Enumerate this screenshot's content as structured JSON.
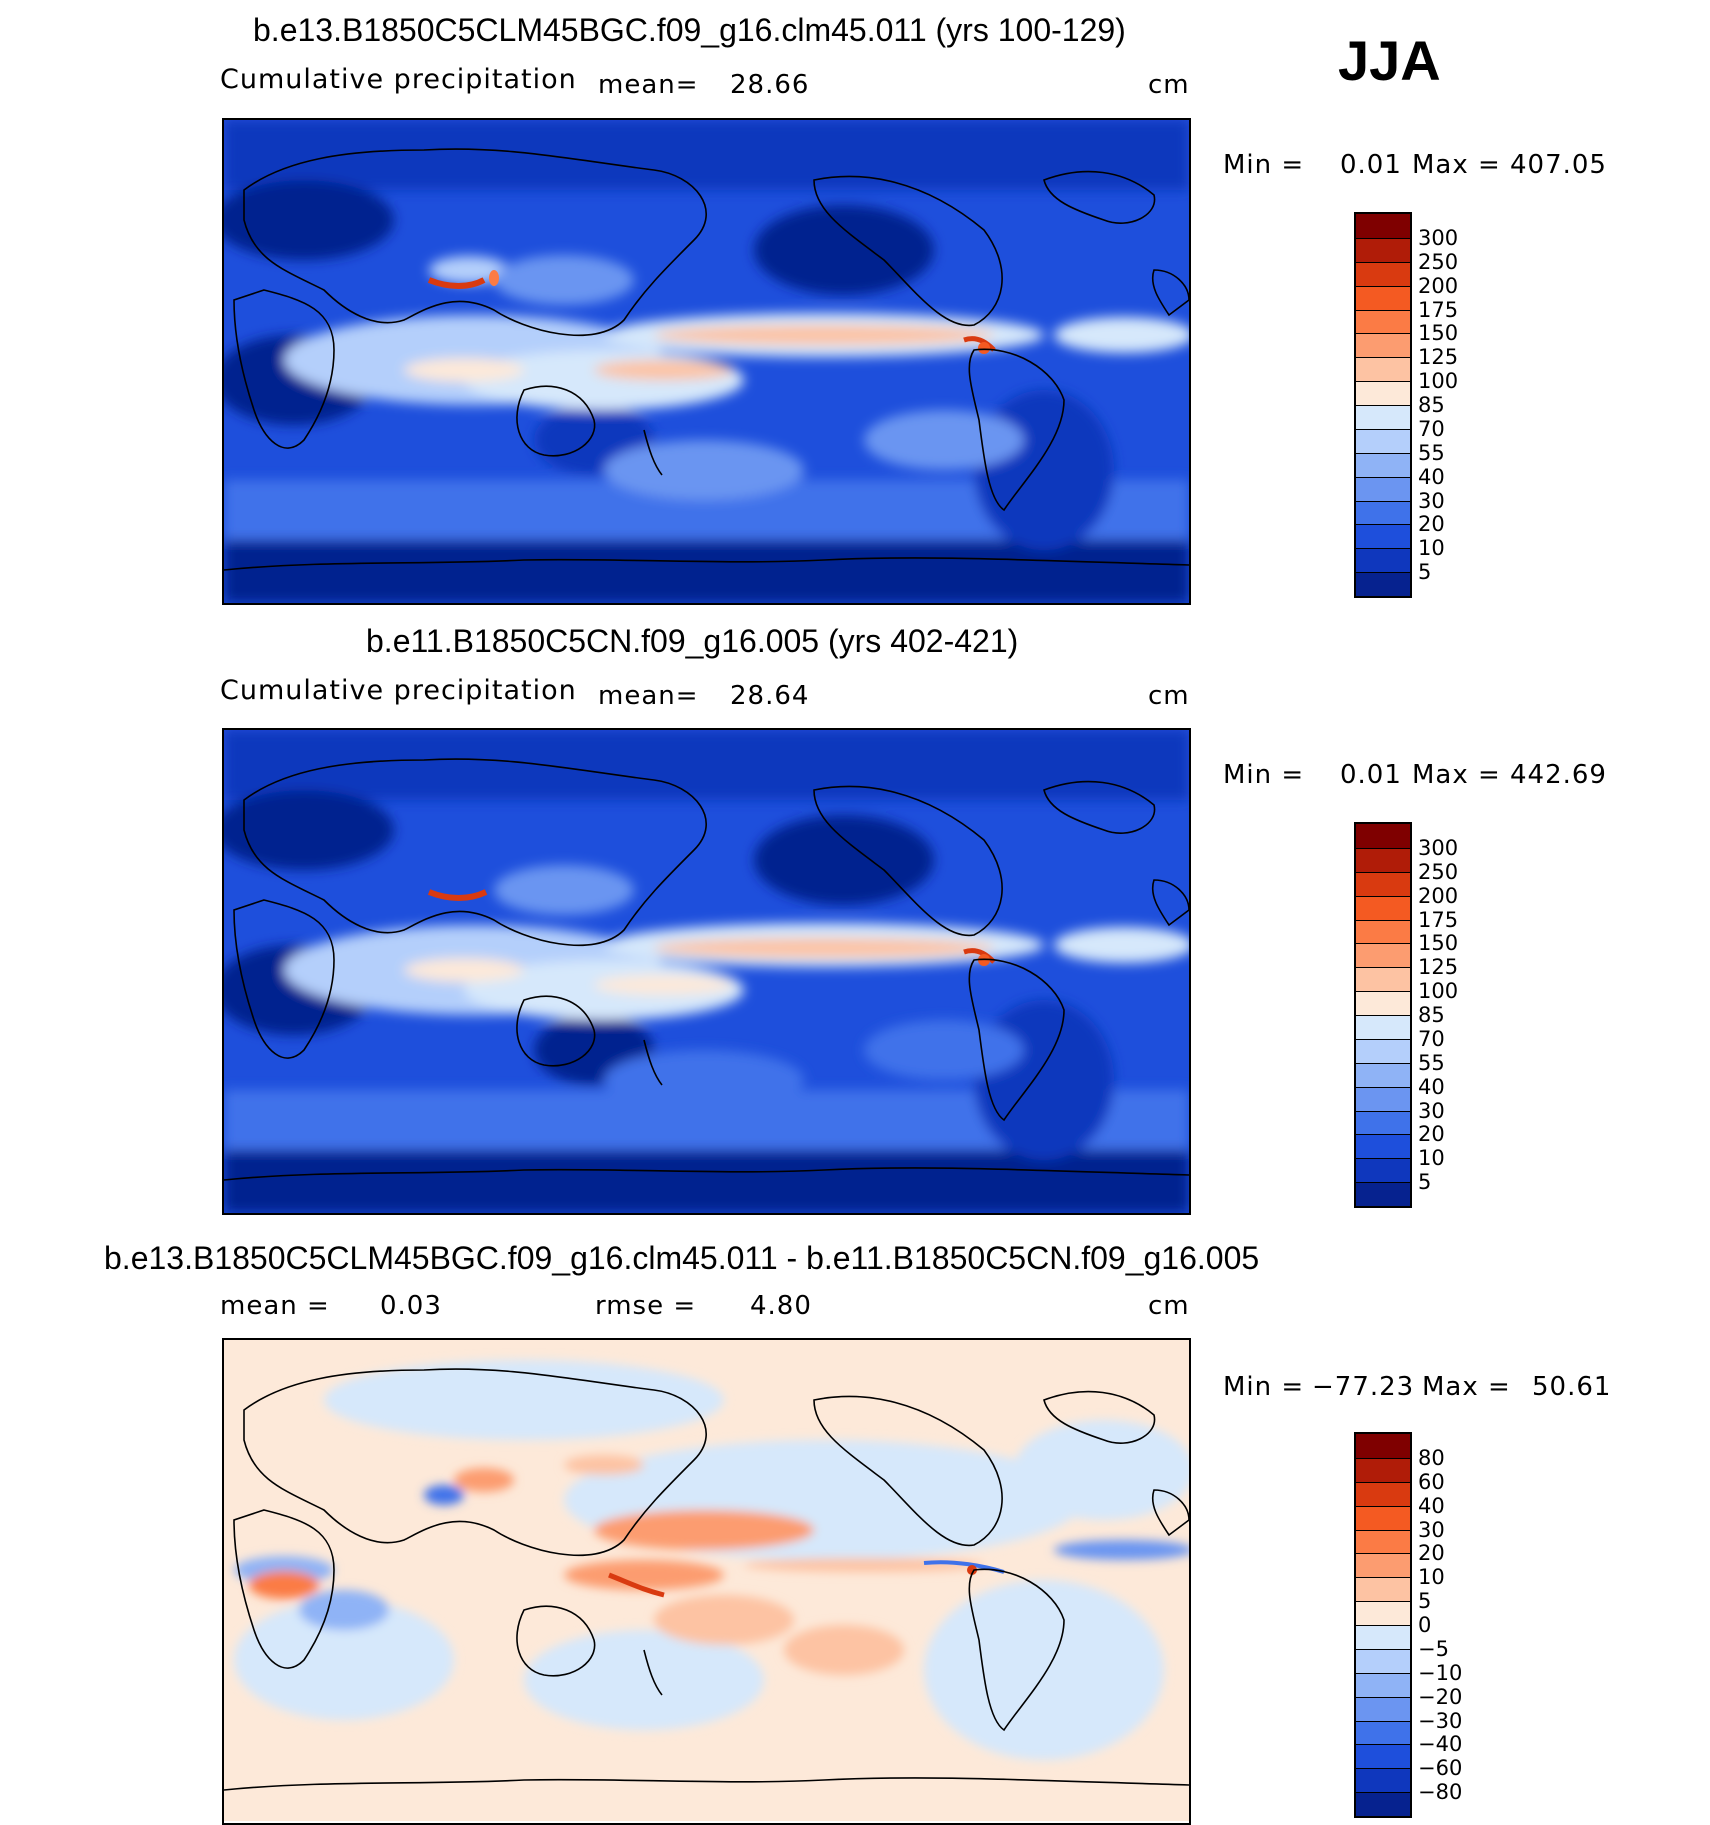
{
  "season": "JJA",
  "panels": [
    {
      "title": "b.e13.B1850C5CLM45BGC.f09_g16.clm45.011 (yrs 100-129)",
      "variable": "Cumulative precipitation",
      "mean_label": "mean=",
      "mean_value": "28.66",
      "units": "cm",
      "min_label": "Min =",
      "min_value": "0.01",
      "max_label": "Max =",
      "max_value": "407.05"
    },
    {
      "title": "b.e11.B1850C5CN.f09_g16.005 (yrs 402-421)",
      "variable": "Cumulative precipitation",
      "mean_label": "mean=",
      "mean_value": "28.64",
      "units": "cm",
      "min_label": "Min =",
      "min_value": "0.01",
      "max_label": "Max =",
      "max_value": "442.69"
    },
    {
      "title": "b.e13.B1850C5CLM45BGC.f09_g16.clm45.011 - b.e11.B1850C5CN.f09_g16.005",
      "mean_label": "mean =",
      "mean_value": "0.03",
      "rmse_label": "rmse =",
      "rmse_value": "4.80",
      "units": "cm",
      "min_label": "Min =",
      "min_value": "−77.23",
      "max_label": "Max =",
      "max_value": "50.61"
    }
  ],
  "colorbars": {
    "precip": {
      "labels": [
        "300",
        "250",
        "200",
        "175",
        "150",
        "125",
        "100",
        "85",
        "70",
        "55",
        "40",
        "30",
        "20",
        "10",
        "5"
      ],
      "colors": [
        "#7f0000",
        "#b01c08",
        "#d93a10",
        "#f45a22",
        "#fb7b45",
        "#fc9c70",
        "#fdc3a3",
        "#fde9d9",
        "#d6e8fb",
        "#b4cffb",
        "#8fb3f6",
        "#6b95f1",
        "#3f72ea",
        "#1e4fdc",
        "#0f37bd",
        "#06228f"
      ]
    },
    "diff": {
      "labels": [
        "80",
        "60",
        "40",
        "30",
        "20",
        "10",
        "5",
        "0",
        "−5",
        "−10",
        "−20",
        "−30",
        "−40",
        "−60",
        "−80"
      ],
      "colors": [
        "#7f0000",
        "#b01c08",
        "#d93a10",
        "#f45a22",
        "#fb7b45",
        "#fc9c70",
        "#fdc3a3",
        "#fde9d9",
        "#d6e8fb",
        "#b4cffb",
        "#8fb3f6",
        "#6b95f1",
        "#3f72ea",
        "#1e4fdc",
        "#0f37bd",
        "#06228f"
      ]
    }
  }
}
